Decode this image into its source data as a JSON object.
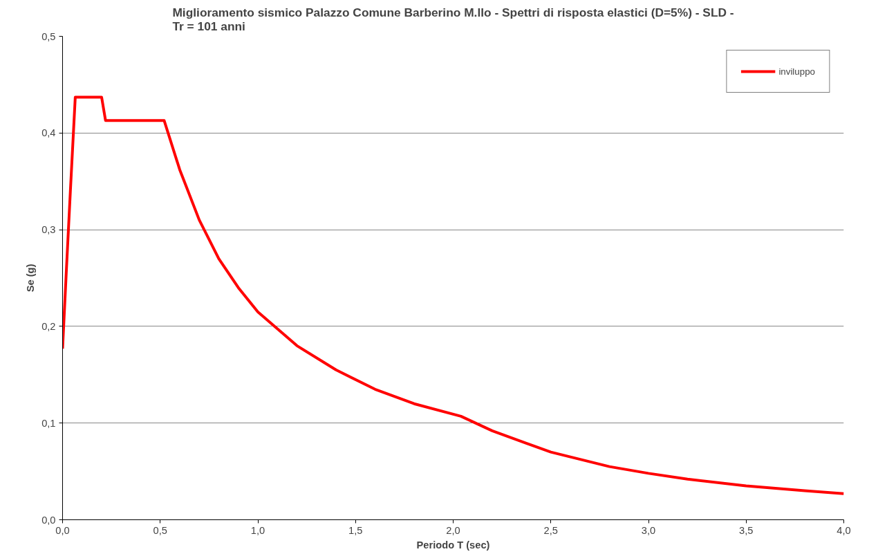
{
  "chart_data": {
    "type": "line",
    "title": "Miglioramento sismico Palazzo Comune Barberino M.llo - Spettri di risposta elastici (D=5%) - SLD -\nTr = 101 anni",
    "xlabel": "Periodo T (sec)",
    "ylabel": "Se (g)",
    "x": [
      0,
      0.02,
      0.04,
      0.065,
      0.2,
      0.22,
      0.52,
      0.6,
      0.7,
      0.8,
      0.9,
      1.0,
      1.2,
      1.4,
      1.6,
      1.8,
      2.04,
      2.2,
      2.5,
      2.8,
      3.0,
      3.2,
      3.5,
      3.8,
      4.0
    ],
    "series": [
      {
        "name": "inviluppo",
        "color": "#ff0000",
        "values": [
          0.177,
          0.26,
          0.34,
          0.437,
          0.437,
          0.413,
          0.413,
          0.362,
          0.31,
          0.27,
          0.24,
          0.215,
          0.18,
          0.155,
          0.135,
          0.12,
          0.107,
          0.092,
          0.07,
          0.055,
          0.048,
          0.042,
          0.035,
          0.03,
          0.027
        ]
      }
    ],
    "xlim": [
      0,
      4
    ],
    "ylim": [
      0,
      0.5
    ],
    "xticks": [
      {
        "value": 0,
        "label": "0,0"
      },
      {
        "value": 0.5,
        "label": "0,5"
      },
      {
        "value": 1,
        "label": "1,0"
      },
      {
        "value": 1.5,
        "label": "1,5"
      },
      {
        "value": 2,
        "label": "2,0"
      },
      {
        "value": 2.5,
        "label": "2,5"
      },
      {
        "value": 3,
        "label": "3,0"
      },
      {
        "value": 3.5,
        "label": "3,5"
      },
      {
        "value": 4,
        "label": "4,0"
      }
    ],
    "yticks": [
      {
        "value": 0,
        "label": "0,0"
      },
      {
        "value": 0.1,
        "label": "0,1"
      },
      {
        "value": 0.2,
        "label": "0,2"
      },
      {
        "value": 0.3,
        "label": "0,3"
      },
      {
        "value": 0.4,
        "label": "0,4"
      },
      {
        "value": 0.5,
        "label": "0,5"
      }
    ],
    "grid": "y",
    "legend": "top right",
    "marker": "none",
    "line_style": "solid"
  }
}
